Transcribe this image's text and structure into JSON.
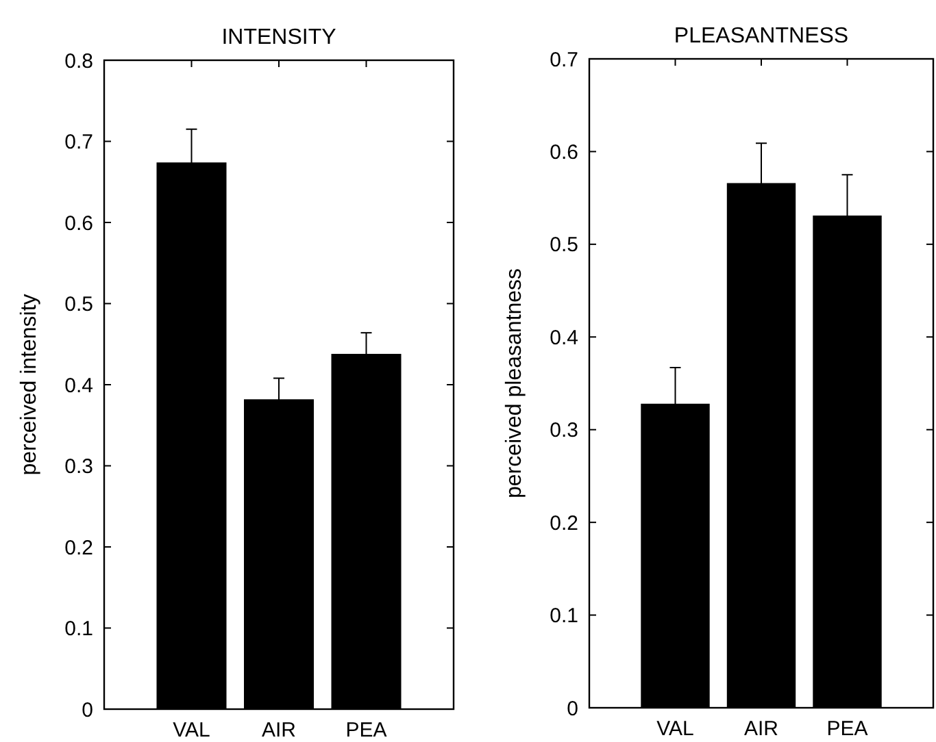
{
  "chart_data": [
    {
      "type": "bar",
      "title": "INTENSITY",
      "ylabel": "perceived intensity",
      "categories": [
        "VAL",
        "AIR",
        "PEA"
      ],
      "values": [
        0.674,
        0.382,
        0.438
      ],
      "errors": [
        0.041,
        0.026,
        0.026
      ],
      "color": "#000000",
      "ylim": [
        0,
        0.8
      ],
      "yticks": [
        0,
        0.1,
        0.2,
        0.3,
        0.4,
        0.5,
        0.6,
        0.7,
        0.8
      ]
    },
    {
      "type": "bar",
      "title": "PLEASANTNESS",
      "ylabel": "perceived pleasantness",
      "categories": [
        "VAL",
        "AIR",
        "PEA"
      ],
      "values": [
        0.328,
        0.566,
        0.531
      ],
      "errors": [
        0.039,
        0.043,
        0.044
      ],
      "color": "#000000",
      "ylim": [
        0,
        0.7
      ],
      "yticks": [
        0,
        0.1,
        0.2,
        0.3,
        0.4,
        0.5,
        0.6,
        0.7
      ]
    }
  ]
}
